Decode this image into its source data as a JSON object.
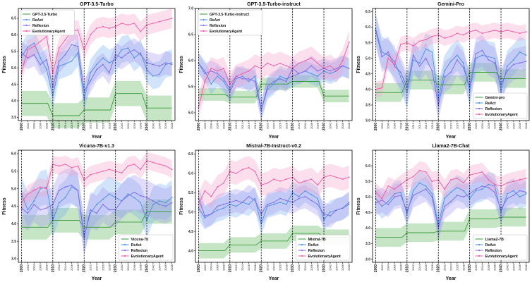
{
  "series_styles": {
    "baseline": {
      "line": "#3a9a3a",
      "band": "#6fbf6f"
    },
    "ReAct": {
      "line": "#4a90e2",
      "band": "#7fb2ef"
    },
    "Reflexion": {
      "line": "#7b68ee",
      "band": "#a99cf0"
    },
    "EvolutionaryAgent": {
      "line": "#ee5aa6",
      "band": "#f7a4cb"
    }
  },
  "chart_data": [
    {
      "type": "line",
      "title": "GPT-3.5-Turbo",
      "xlabel": "Year",
      "ylabel": "Fitness",
      "x": [
        2000,
        2002,
        2004,
        2006,
        2008,
        2010,
        2012,
        2014,
        2016,
        2018,
        2020,
        2022,
        2024,
        2026,
        2028,
        2030,
        2032,
        2034,
        2036,
        2038,
        2040,
        2042,
        2044,
        2046,
        2048
      ],
      "ylim": [
        3.4,
        6.8
      ],
      "yticks": [
        3.5,
        4.0,
        4.5,
        5.0,
        5.5,
        6.0,
        6.5
      ],
      "legend": "upper left",
      "series": [
        {
          "name": "GPT-3.5-Turbo",
          "role": "baseline",
          "values": [
            3.92,
            3.92,
            3.92,
            3.92,
            3.92,
            3.55,
            3.55,
            3.55,
            3.55,
            3.55,
            3.72,
            3.72,
            3.72,
            3.72,
            3.72,
            4.22,
            4.22,
            4.22,
            4.22,
            4.22,
            3.78,
            3.78,
            3.78,
            3.78,
            3.78
          ],
          "spread": 0.38
        },
        {
          "name": "ReAct",
          "role": "ReAct",
          "values": [
            5.35,
            5.62,
            5.75,
            5.3,
            4.95,
            4.15,
            5.05,
            5.12,
            5.2,
            5.45,
            4.05,
            4.85,
            5.1,
            5.3,
            5.15,
            5.25,
            5.55,
            5.6,
            5.3,
            5.45,
            4.95,
            4.75,
            4.8,
            5.1,
            5.15
          ],
          "spread": 0.4
        },
        {
          "name": "Reflexion",
          "role": "Reflexion",
          "values": [
            5.45,
            5.3,
            5.4,
            5.1,
            5.25,
            4.4,
            5.2,
            5.4,
            5.7,
            5.65,
            4.3,
            4.6,
            4.95,
            5.1,
            4.85,
            5.4,
            5.3,
            5.45,
            5.55,
            5.4,
            5.15,
            5.1,
            5.05,
            5.15,
            5.1
          ],
          "spread": 0.35
        },
        {
          "name": "EvolutionaryAgent",
          "role": "EvolutionaryAgent",
          "values": [
            4.85,
            5.55,
            5.65,
            5.8,
            5.95,
            4.85,
            5.6,
            5.85,
            6.1,
            6.15,
            5.55,
            6.0,
            6.2,
            6.25,
            6.2,
            6.25,
            6.35,
            6.3,
            6.35,
            6.1,
            6.3,
            6.35,
            6.4,
            6.45,
            6.5
          ],
          "spread": 0.3
        }
      ]
    },
    {
      "type": "line",
      "title": "GPT-3.5-Turbo-instruct",
      "xlabel": "Year",
      "ylabel": "Fitness",
      "x": [
        2000,
        2002,
        2004,
        2006,
        2008,
        2010,
        2012,
        2014,
        2016,
        2018,
        2020,
        2022,
        2024,
        2026,
        2028,
        2030,
        2032,
        2034,
        2036,
        2038,
        2040,
        2042,
        2044,
        2046,
        2048
      ],
      "ylim": [
        4.85,
        7.0
      ],
      "yticks": [
        5.0,
        5.5,
        6.0,
        6.5,
        7.0
      ],
      "legend": "upper left",
      "series": [
        {
          "name": "GPT-3.5-Turbo-instruct",
          "role": "baseline",
          "values": [
            5.35,
            5.35,
            5.35,
            5.35,
            5.35,
            5.3,
            5.3,
            5.3,
            5.3,
            5.3,
            5.55,
            5.55,
            5.55,
            5.55,
            5.55,
            5.6,
            5.6,
            5.6,
            5.6,
            5.6,
            5.32,
            5.32,
            5.32,
            5.32,
            5.32
          ],
          "spread": 0.12
        },
        {
          "name": "ReAct",
          "role": "ReAct",
          "values": [
            5.95,
            5.8,
            5.55,
            5.7,
            5.6,
            5.4,
            5.65,
            5.7,
            5.6,
            5.7,
            5.05,
            5.45,
            5.55,
            5.7,
            5.65,
            5.7,
            5.75,
            5.8,
            5.75,
            5.7,
            5.8,
            5.75,
            5.8,
            5.9,
            5.85
          ],
          "spread": 0.2
        },
        {
          "name": "Reflexion",
          "role": "Reflexion",
          "values": [
            5.95,
            5.75,
            5.8,
            5.75,
            5.65,
            5.45,
            5.7,
            5.65,
            5.65,
            5.6,
            5.05,
            5.5,
            5.6,
            5.65,
            5.6,
            5.85,
            5.75,
            5.8,
            5.9,
            5.8,
            5.85,
            5.8,
            5.85,
            5.9,
            5.85
          ],
          "spread": 0.2
        },
        {
          "name": "EvolutionaryAgent",
          "role": "EvolutionaryAgent",
          "values": [
            5.1,
            5.6,
            5.85,
            5.8,
            5.85,
            5.55,
            5.7,
            5.75,
            5.8,
            5.9,
            5.85,
            5.95,
            5.9,
            5.95,
            5.9,
            5.85,
            5.95,
            6.0,
            6.05,
            5.95,
            5.85,
            5.9,
            5.8,
            6.0,
            6.35
          ],
          "spread": 0.22
        }
      ]
    },
    {
      "type": "line",
      "title": "Gemini-Pro",
      "xlabel": "Year",
      "ylabel": "Fitness",
      "x": [
        2000,
        2002,
        2004,
        2006,
        2008,
        2010,
        2012,
        2014,
        2016,
        2018,
        2020,
        2022,
        2024,
        2026,
        2028,
        2030,
        2032,
        2034,
        2036,
        2038,
        2040,
        2042,
        2044,
        2046,
        2048
      ],
      "ylim": [
        3.0,
        6.6
      ],
      "yticks": [
        3.0,
        3.5,
        4.0,
        4.5,
        5.0,
        5.5,
        6.0,
        6.5
      ],
      "legend": "lower right",
      "series": [
        {
          "name": "Gemini-pro",
          "role": "baseline",
          "values": [
            3.9,
            3.9,
            3.9,
            3.9,
            3.9,
            4.3,
            4.3,
            4.3,
            4.3,
            4.3,
            4.15,
            4.15,
            4.15,
            4.15,
            4.15,
            4.55,
            4.55,
            4.55,
            4.55,
            4.55,
            4.35,
            4.35,
            4.35,
            4.35,
            4.35
          ],
          "spread": 0.3
        },
        {
          "name": "ReAct",
          "role": "ReAct",
          "values": [
            5.95,
            5.2,
            5.1,
            4.9,
            4.4,
            3.9,
            4.95,
            4.85,
            5.3,
            5.2,
            3.7,
            4.6,
            4.9,
            5.1,
            4.85,
            3.95,
            5.0,
            5.1,
            5.05,
            5.0,
            3.95,
            4.75,
            4.95,
            5.2,
            5.1
          ],
          "spread": 0.5
        },
        {
          "name": "Reflexion",
          "role": "Reflexion",
          "values": [
            5.9,
            5.05,
            5.2,
            4.75,
            4.55,
            4.05,
            5.1,
            4.75,
            5.0,
            4.6,
            3.5,
            4.4,
            4.55,
            4.95,
            4.7,
            4.1,
            5.15,
            5.25,
            4.95,
            4.85,
            4.15,
            4.6,
            4.8,
            4.85,
            4.9
          ],
          "spread": 0.5
        },
        {
          "name": "EvolutionaryAgent",
          "role": "EvolutionaryAgent",
          "values": [
            4.0,
            4.05,
            5.0,
            4.8,
            5.45,
            5.5,
            5.4,
            5.55,
            5.6,
            5.7,
            5.75,
            5.65,
            5.7,
            5.8,
            5.75,
            5.85,
            5.9,
            5.8,
            5.85,
            5.9,
            5.85,
            5.9,
            5.85,
            5.8,
            5.85
          ],
          "spread": 0.25
        }
      ]
    },
    {
      "type": "line",
      "title": "Vicuna-7B-v1.3",
      "xlabel": "Year",
      "ylabel": "Fitness",
      "x": [
        2000,
        2002,
        2004,
        2006,
        2008,
        2010,
        2012,
        2014,
        2016,
        2018,
        2020,
        2022,
        2024,
        2026,
        2028,
        2030,
        2032,
        2034,
        2036,
        2038,
        2040,
        2042,
        2044,
        2046,
        2048
      ],
      "ylim": [
        2.9,
        6.1
      ],
      "yticks": [
        3.0,
        3.5,
        4.0,
        4.5,
        5.0,
        5.5,
        6.0
      ],
      "legend": "lower right",
      "series": [
        {
          "name": "Vicuna-7b",
          "role": "baseline",
          "values": [
            3.9,
            3.9,
            3.9,
            3.9,
            3.9,
            4.1,
            4.1,
            4.1,
            4.1,
            4.1,
            3.9,
            3.9,
            3.9,
            3.9,
            3.9,
            4.05,
            4.05,
            4.05,
            4.05,
            4.05,
            4.35,
            4.35,
            4.35,
            4.35,
            4.35
          ],
          "spread": 0.35
        },
        {
          "name": "ReAct",
          "role": "ReAct",
          "values": [
            4.85,
            4.4,
            4.65,
            5.0,
            5.05,
            4.1,
            4.6,
            4.75,
            5.05,
            4.95,
            3.65,
            4.3,
            4.55,
            4.7,
            4.85,
            4.75,
            4.65,
            4.85,
            4.75,
            4.6,
            4.1,
            4.55,
            4.65,
            4.6,
            4.75
          ],
          "spread": 0.5
        },
        {
          "name": "Reflexion",
          "role": "Reflexion",
          "values": [
            4.45,
            4.3,
            4.55,
            4.4,
            4.45,
            4.55,
            4.95,
            5.05,
            5.1,
            4.95,
            3.6,
            4.4,
            4.3,
            4.55,
            4.4,
            4.4,
            4.65,
            4.8,
            4.9,
            4.8,
            4.75,
            4.65,
            4.55,
            4.5,
            4.6
          ],
          "spread": 0.5
        },
        {
          "name": "EvolutionaryAgent",
          "role": "EvolutionaryAgent",
          "values": [
            4.6,
            4.85,
            4.95,
            5.05,
            5.0,
            5.7,
            5.65,
            5.7,
            5.6,
            5.65,
            5.25,
            5.4,
            5.45,
            5.5,
            5.55,
            5.5,
            5.45,
            5.65,
            5.7,
            5.55,
            5.8,
            5.75,
            5.7,
            5.65,
            5.55
          ],
          "spread": 0.25
        }
      ]
    },
    {
      "type": "line",
      "title": "Mistral-7B-Instruct-v0.2",
      "xlabel": "Year",
      "ylabel": "Fitness",
      "x": [
        2000,
        2002,
        2004,
        2006,
        2008,
        2010,
        2012,
        2014,
        2016,
        2018,
        2020,
        2022,
        2024,
        2026,
        2028,
        2030,
        2032,
        2034,
        2036,
        2038,
        2040,
        2042,
        2044,
        2046,
        2048
      ],
      "ylim": [
        3.7,
        6.6
      ],
      "yticks": [
        4.0,
        4.5,
        5.0,
        5.5,
        6.0,
        6.5
      ],
      "legend": "lower right",
      "series": [
        {
          "name": "Mistral-7B",
          "role": "baseline",
          "values": [
            4.0,
            4.0,
            4.0,
            4.0,
            4.0,
            4.15,
            4.15,
            4.15,
            4.15,
            4.15,
            4.25,
            4.25,
            4.25,
            4.25,
            4.25,
            4.45,
            4.45,
            4.45,
            4.45,
            4.45,
            4.35,
            4.35,
            4.35,
            4.35,
            4.35
          ],
          "spread": 0.2
        },
        {
          "name": "ReAct",
          "role": "ReAct",
          "values": [
            5.1,
            4.85,
            4.95,
            5.05,
            5.1,
            5.2,
            5.15,
            5.25,
            5.2,
            5.35,
            4.7,
            5.15,
            5.2,
            5.25,
            5.2,
            5.5,
            5.4,
            5.55,
            5.45,
            5.35,
            4.8,
            5.0,
            5.05,
            5.1,
            5.2
          ],
          "spread": 0.3
        },
        {
          "name": "Reflexion",
          "role": "Reflexion",
          "values": [
            5.35,
            4.9,
            4.95,
            5.15,
            5.2,
            5.25,
            5.3,
            5.25,
            5.4,
            5.3,
            4.95,
            5.2,
            5.25,
            5.35,
            5.3,
            5.25,
            5.35,
            5.4,
            5.3,
            5.2,
            4.95,
            4.9,
            5.05,
            5.1,
            5.25
          ],
          "spread": 0.3
        },
        {
          "name": "EvolutionaryAgent",
          "role": "EvolutionaryAgent",
          "values": [
            5.2,
            5.55,
            5.4,
            5.65,
            5.75,
            6.05,
            6.0,
            6.1,
            6.15,
            6.05,
            5.7,
            5.75,
            5.85,
            5.8,
            5.85,
            5.9,
            5.75,
            5.8,
            5.85,
            5.7,
            5.9,
            5.95,
            5.9,
            5.85,
            5.9
          ],
          "spread": 0.3
        }
      ]
    },
    {
      "type": "line",
      "title": "Llama2-7B-Chat",
      "xlabel": "Year",
      "ylabel": "Fitness",
      "x": [
        2000,
        2002,
        2004,
        2006,
        2008,
        2010,
        2012,
        2014,
        2016,
        2018,
        2020,
        2022,
        2024,
        2026,
        2028,
        2030,
        2032,
        2034,
        2036,
        2038,
        2040,
        2042,
        2044,
        2046,
        2048
      ],
      "ylim": [
        2.9,
        6.5
      ],
      "yticks": [
        3.0,
        3.5,
        4.0,
        4.5,
        5.0,
        5.5,
        6.0
      ],
      "legend": "lower right",
      "series": [
        {
          "name": "Llama2-7B",
          "role": "baseline",
          "values": [
            3.7,
            3.7,
            3.7,
            3.7,
            3.7,
            3.85,
            3.85,
            3.85,
            3.85,
            3.85,
            3.9,
            3.9,
            3.9,
            3.9,
            3.9,
            4.3,
            4.3,
            4.3,
            4.3,
            4.3,
            4.35,
            4.35,
            4.35,
            4.35,
            4.35
          ],
          "spread": 0.3
        },
        {
          "name": "ReAct",
          "role": "ReAct",
          "values": [
            4.95,
            4.7,
            4.85,
            5.1,
            5.15,
            4.45,
            5.2,
            5.45,
            5.35,
            5.1,
            4.1,
            4.95,
            5.15,
            5.3,
            5.2,
            4.95,
            5.2,
            5.25,
            5.4,
            5.35,
            4.5,
            5.1,
            5.2,
            5.0,
            5.1
          ],
          "spread": 0.4
        },
        {
          "name": "Reflexion",
          "role": "Reflexion",
          "values": [
            4.8,
            4.9,
            4.75,
            5.0,
            5.05,
            4.55,
            5.05,
            5.15,
            5.25,
            5.0,
            4.0,
            4.7,
            4.85,
            5.05,
            5.0,
            5.1,
            5.25,
            5.35,
            5.3,
            5.15,
            4.6,
            4.95,
            5.05,
            5.2,
            5.15
          ],
          "spread": 0.4
        },
        {
          "name": "EvolutionaryAgent",
          "role": "EvolutionaryAgent",
          "values": [
            5.15,
            4.95,
            5.35,
            5.25,
            5.4,
            5.55,
            5.65,
            5.85,
            5.8,
            5.5,
            5.55,
            5.25,
            5.55,
            5.6,
            5.45,
            5.7,
            5.75,
            5.8,
            5.55,
            5.4,
            5.35,
            5.45,
            5.5,
            5.55,
            5.6
          ],
          "spread": 0.3
        }
      ]
    }
  ]
}
